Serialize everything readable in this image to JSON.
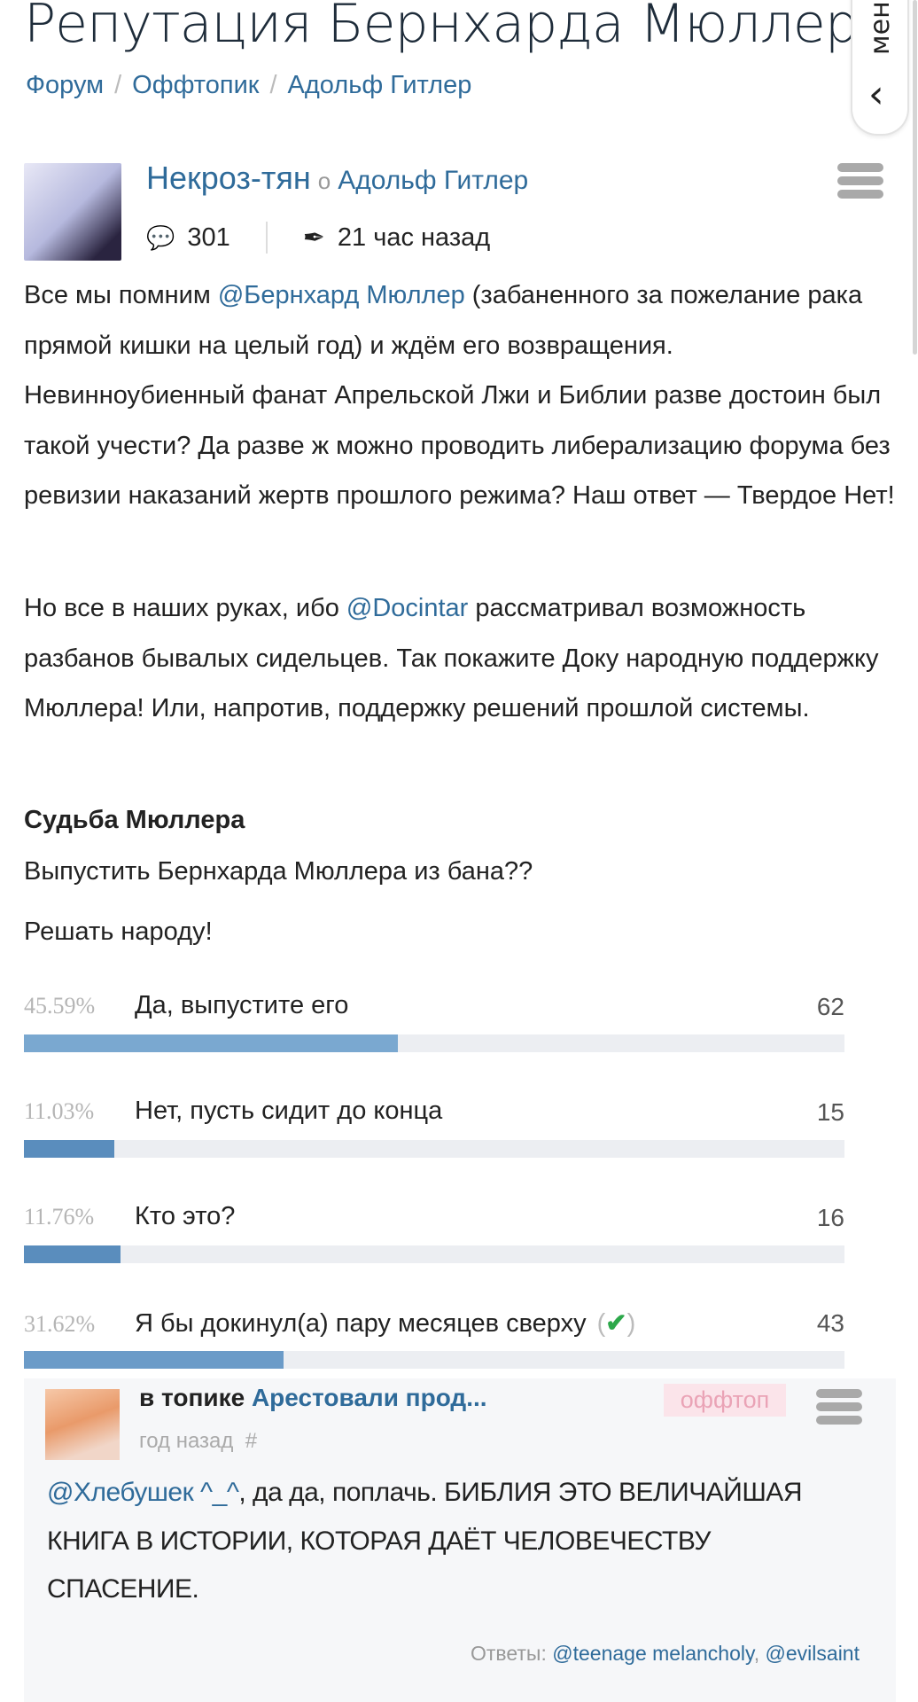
{
  "page": {
    "title": "Репутация Бернхарда Мюллер"
  },
  "breadcrumbs": [
    "Форум",
    "Оффтопик",
    "Адольф Гитлер"
  ],
  "menu_tab": {
    "label": "меню",
    "icon": "chevron-left-icon"
  },
  "post": {
    "author": "Некроз-тян",
    "about_word": "о",
    "topic": "Адольф Гитлер",
    "comments": "301",
    "time": "21 час назад",
    "paragraphs": [
      [
        "Все мы помним ",
        "@Бернхард Мюллер",
        " (забаненного за пожелание рака прямой кишки на целый год) и ждём его возвращения. Невинноубиенный фанат Апрельской Лжи и Библии разве достоин был такой учести? Да разве ж можно проводить либерализацию форума без ревизии наказаний жертв прошлого режима? Наш ответ — Твердое Нет!"
      ],
      [
        "Но все в наших руках, ибо ",
        "@Docintar",
        " рассматривал возможность разбанов бывалых сидельцев. Так покажите Доку народную поддержку Мюллера! Или, напротив, поддержку решений прошлой системы."
      ]
    ],
    "poll": {
      "title": "Судьба Мюллера",
      "question": "Выпустить Бернхарда Мюллера из бана??",
      "note": "Решать народу!",
      "options": [
        {
          "percent": "45.59%",
          "value": 45.59,
          "label": "Да, выпустите его",
          "count": "62",
          "color": "#7aa8d0"
        },
        {
          "percent": "11.03%",
          "value": 11.03,
          "label": "Нет, пусть сидит до конца",
          "count": "15",
          "color": "#5a8dbd"
        },
        {
          "percent": "11.76%",
          "value": 11.76,
          "label": "Кто это?",
          "count": "16",
          "color": "#5a8dbd"
        },
        {
          "percent": "31.62%",
          "value": 31.62,
          "label": "Я бы докинул(а) пару месяцев сверху",
          "count": "43",
          "color": "#6b9bc8",
          "voted": true
        }
      ]
    }
  },
  "comment": {
    "in_topic": "в топике",
    "topic": "Арестовали прод...",
    "badge": "оффтоп",
    "time": "год назад",
    "hash": "#",
    "mention": "@Хлебушек ^_^",
    "text": ", да да, поплачь. БИБЛИЯ ЭТО ВЕЛИЧАЙШАЯ КНИГА В ИСТОРИИ, КОТОРАЯ ДАЁТ ЧЕЛОВЕЧЕСТВУ СПАСЕНИЕ.",
    "replies_label": "Ответы:",
    "replies": [
      "@teenage melancholy",
      "@evilsaint"
    ]
  }
}
